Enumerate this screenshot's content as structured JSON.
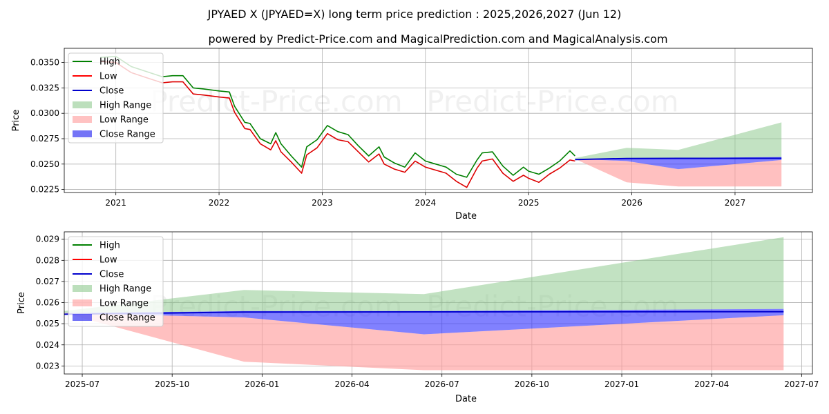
{
  "header": {
    "title": "JPYAED X (JPYAED=X) long term price prediction : 2025,2026,2027 (Jun 12)",
    "subtitle": "powered by Predict-Price.com and MagicalPrediction.com and MagicalAnalysis.com"
  },
  "watermark": "Predict-Price.com",
  "legend": [
    {
      "label": "High",
      "kind": "line",
      "color": "#008000"
    },
    {
      "label": "Low",
      "kind": "line",
      "color": "#ff0000"
    },
    {
      "label": "Close",
      "kind": "line",
      "color": "#0000cd"
    },
    {
      "label": "High Range",
      "kind": "patch",
      "color": "#8fca8f"
    },
    {
      "label": "Low Range",
      "kind": "patch",
      "color": "#ff9a9a"
    },
    {
      "label": "Close Range",
      "kind": "patch",
      "color": "#0000ee"
    }
  ],
  "chart_data": [
    {
      "type": "line",
      "title": "",
      "xlabel": "Date",
      "ylabel": "Price",
      "xlim": [
        2020.5,
        2027.75
      ],
      "ylim": [
        0.0222,
        0.0364
      ],
      "xticks": [
        {
          "v": 2021,
          "label": "2021"
        },
        {
          "v": 2022,
          "label": "2022"
        },
        {
          "v": 2023,
          "label": "2023"
        },
        {
          "v": 2024,
          "label": "2024"
        },
        {
          "v": 2025,
          "label": "2025"
        },
        {
          "v": 2026,
          "label": "2026"
        },
        {
          "v": 2027,
          "label": "2027"
        }
      ],
      "yticks": [
        {
          "v": 0.0225,
          "label": "0.0225"
        },
        {
          "v": 0.025,
          "label": "0.0250"
        },
        {
          "v": 0.0275,
          "label": "0.0275"
        },
        {
          "v": 0.03,
          "label": "0.0300"
        },
        {
          "v": 0.0325,
          "label": "0.0325"
        },
        {
          "v": 0.035,
          "label": "0.0350"
        }
      ],
      "grid": true,
      "legend_position": "upper-left",
      "history_x": [
        2020.85,
        2021.0,
        2021.15,
        2021.3,
        2021.45,
        2021.55,
        2021.65,
        2021.75,
        2021.85,
        2022.0,
        2022.1,
        2022.15,
        2022.25,
        2022.3,
        2022.4,
        2022.5,
        2022.55,
        2022.6,
        2022.7,
        2022.8,
        2022.85,
        2022.95,
        2023.05,
        2023.15,
        2023.25,
        2023.35,
        2023.45,
        2023.55,
        2023.6,
        2023.7,
        2023.8,
        2023.9,
        2024.0,
        2024.1,
        2024.2,
        2024.3,
        2024.4,
        2024.5,
        2024.55,
        2024.65,
        2024.75,
        2024.85,
        2024.95,
        2025.0,
        2025.1,
        2025.2,
        2025.3,
        2025.4,
        2025.45
      ],
      "history_high": [
        0.0355,
        0.0356,
        0.0346,
        0.0341,
        0.0336,
        0.0337,
        0.0337,
        0.0325,
        0.0324,
        0.0322,
        0.0321,
        0.0307,
        0.0291,
        0.029,
        0.0275,
        0.027,
        0.0281,
        0.027,
        0.0258,
        0.0247,
        0.0267,
        0.0274,
        0.0288,
        0.0282,
        0.0279,
        0.0268,
        0.0258,
        0.0267,
        0.0257,
        0.0251,
        0.0247,
        0.0261,
        0.0253,
        0.025,
        0.0247,
        0.024,
        0.0237,
        0.0254,
        0.0261,
        0.0262,
        0.0248,
        0.0239,
        0.0247,
        0.0243,
        0.024,
        0.0246,
        0.0253,
        0.0263,
        0.0258
      ],
      "history_low": [
        0.0351,
        0.035,
        0.034,
        0.0335,
        0.033,
        0.0331,
        0.0331,
        0.0319,
        0.0318,
        0.0316,
        0.0315,
        0.0301,
        0.0285,
        0.0284,
        0.027,
        0.0264,
        0.0273,
        0.0262,
        0.0252,
        0.0241,
        0.0259,
        0.0266,
        0.028,
        0.0274,
        0.0272,
        0.0262,
        0.0252,
        0.026,
        0.025,
        0.0245,
        0.0242,
        0.0253,
        0.0247,
        0.0244,
        0.0241,
        0.0233,
        0.0227,
        0.0246,
        0.0253,
        0.0255,
        0.0241,
        0.0233,
        0.0239,
        0.0236,
        0.0232,
        0.024,
        0.0246,
        0.0254,
        0.0253
      ],
      "forecast_x": [
        2025.45,
        2025.95,
        2026.45,
        2027.45
      ],
      "high_range_upper": [
        0.0256,
        0.0266,
        0.0264,
        0.0291
      ],
      "low_range_lower": [
        0.0255,
        0.0232,
        0.0228,
        0.0228
      ],
      "close_range_upper": [
        0.0255,
        0.0256,
        0.0256,
        0.0257
      ],
      "close_range_lower": [
        0.0255,
        0.0253,
        0.0245,
        0.0254
      ],
      "close_line": [
        0.02545,
        0.02555,
        0.02556,
        0.02557
      ]
    },
    {
      "type": "line",
      "title": "",
      "xlabel": "Date",
      "ylabel": "Price",
      "xlim": [
        2025.45,
        2027.53
      ],
      "ylim": [
        0.02262,
        0.02935
      ],
      "xticks": [
        {
          "v": 2025.5,
          "label": "2025-07"
        },
        {
          "v": 2025.75,
          "label": "2025-10"
        },
        {
          "v": 2026.0,
          "label": "2026-01"
        },
        {
          "v": 2026.25,
          "label": "2026-04"
        },
        {
          "v": 2026.5,
          "label": "2026-07"
        },
        {
          "v": 2026.75,
          "label": "2026-10"
        },
        {
          "v": 2027.0,
          "label": "2027-01"
        },
        {
          "v": 2027.25,
          "label": "2027-04"
        },
        {
          "v": 2027.5,
          "label": "2027-07"
        }
      ],
      "yticks": [
        {
          "v": 0.023,
          "label": "0.023"
        },
        {
          "v": 0.024,
          "label": "0.024"
        },
        {
          "v": 0.025,
          "label": "0.025"
        },
        {
          "v": 0.026,
          "label": "0.026"
        },
        {
          "v": 0.027,
          "label": "0.027"
        },
        {
          "v": 0.028,
          "label": "0.028"
        },
        {
          "v": 0.029,
          "label": "0.029"
        }
      ],
      "grid": true,
      "legend_position": "upper-left",
      "forecast_x": [
        2025.45,
        2025.95,
        2026.45,
        2027.45
      ],
      "high_range_upper": [
        0.0256,
        0.0266,
        0.0264,
        0.0291
      ],
      "low_range_lower": [
        0.0255,
        0.0232,
        0.0228,
        0.0228
      ],
      "close_range_upper": [
        0.0255,
        0.0256,
        0.0256,
        0.0257
      ],
      "close_range_lower": [
        0.0255,
        0.0253,
        0.0245,
        0.0254
      ],
      "close_line": [
        0.02545,
        0.02555,
        0.02556,
        0.02557
      ]
    }
  ]
}
